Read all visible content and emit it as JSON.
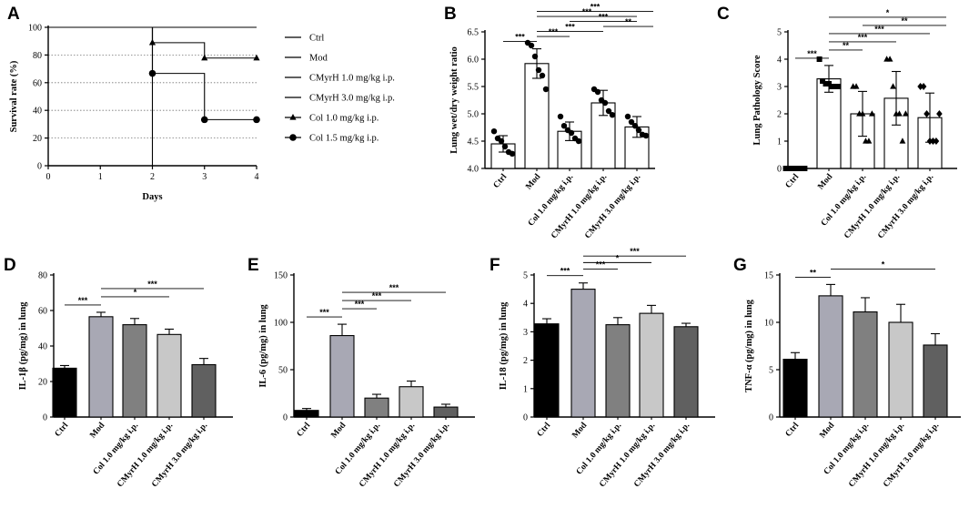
{
  "categories": [
    "Ctrl",
    "Mod",
    "Col 1.0 mg/kg i.p.",
    "CMyrH 1.0 mg/kg i.p.",
    "CMyrH 3.0 mg/kg i.p."
  ],
  "chart_data": [
    {
      "id": "A",
      "type": "line",
      "title": "",
      "xlabel": "Days",
      "ylabel": "Survival rate (%)",
      "xlim": [
        0,
        4
      ],
      "ylim": [
        0,
        100
      ],
      "xticks": [
        "0",
        "1",
        "2",
        "3",
        "4"
      ],
      "yticks": [
        "0",
        "20",
        "40",
        "60",
        "80",
        "100"
      ],
      "grid": "horizontal dotted",
      "series": [
        {
          "name": "Ctrl",
          "marker": "none",
          "points": [
            [
              0,
              100
            ],
            [
              4,
              100
            ]
          ]
        },
        {
          "name": "Mod",
          "marker": "none",
          "points": [
            [
              0,
              100
            ],
            [
              2,
              100
            ],
            [
              2,
              0
            ]
          ]
        },
        {
          "name": "CMyrH 1.0 mg/kg i.p.",
          "marker": "none",
          "points": [
            [
              0,
              100
            ],
            [
              4,
              100
            ]
          ]
        },
        {
          "name": "CMyrH 3.0 mg/kg i.p.",
          "marker": "none",
          "points": [
            [
              0,
              100
            ],
            [
              4,
              100
            ]
          ]
        },
        {
          "name": "Col 1.0 mg/kg i.p.",
          "marker": "triangle",
          "points": [
            [
              2,
              88.9
            ],
            [
              3,
              77.8
            ],
            [
              4,
              77.8
            ]
          ]
        },
        {
          "name": "Col 1.5 mg/kg i.p.",
          "marker": "circle",
          "points": [
            [
              2,
              66.7
            ],
            [
              3,
              33.3
            ],
            [
              4,
              33.3
            ]
          ]
        }
      ]
    },
    {
      "id": "B",
      "type": "bar",
      "ylabel": "Lung wet/dry weight ratio",
      "ylim": [
        4.0,
        6.5
      ],
      "yticks": [
        "4.0",
        "4.5",
        "5.0",
        "5.5",
        "6.0",
        "6.5"
      ],
      "values": [
        4.45,
        5.92,
        4.68,
        5.2,
        4.76
      ],
      "errors": [
        0.15,
        0.27,
        0.17,
        0.23,
        0.19
      ],
      "point_marker": "circle",
      "points": [
        [
          4.68,
          4.55,
          4.5,
          4.4,
          4.3,
          4.27
        ],
        [
          6.3,
          6.25,
          6.05,
          5.8,
          5.7,
          5.45
        ],
        [
          4.95,
          4.78,
          4.7,
          4.65,
          4.55,
          4.5
        ],
        [
          5.45,
          5.4,
          5.25,
          5.2,
          5.05,
          4.98
        ],
        [
          4.95,
          4.85,
          4.78,
          4.7,
          4.62,
          4.6
        ]
      ],
      "significance": [
        {
          "from": 0,
          "to": 1,
          "label": "***"
        },
        {
          "from": 1,
          "to": 2,
          "label": "***"
        },
        {
          "from": 1,
          "to": 3,
          "label": "***"
        },
        {
          "from": 1,
          "to": 4,
          "label": "***"
        },
        {
          "from": 1,
          "to": 5,
          "label": "***"
        },
        {
          "from": 3,
          "to": 5,
          "label": "**"
        },
        {
          "from": 2,
          "to": 4,
          "label": "***"
        }
      ]
    },
    {
      "id": "C",
      "type": "bar",
      "ylabel": "Lung Pathology Score",
      "ylim": [
        0,
        5
      ],
      "yticks": [
        "0",
        "1",
        "2",
        "3",
        "4",
        "5"
      ],
      "values": [
        0.0,
        3.28,
        2.0,
        2.57,
        1.86
      ],
      "errors": [
        0.0,
        0.49,
        0.82,
        0.98,
        0.9
      ],
      "point_marker": "various",
      "points": [
        [
          0,
          0,
          0,
          0,
          0,
          0,
          0
        ],
        [
          4,
          3.2,
          3.1,
          3.1,
          3,
          3,
          3
        ],
        [
          3,
          3,
          2,
          2,
          1,
          1,
          2
        ],
        [
          4,
          4,
          3,
          2,
          2,
          1,
          2
        ],
        [
          3,
          3,
          2,
          1,
          1,
          1,
          2
        ]
      ],
      "significance": [
        {
          "from": 0,
          "to": 1,
          "label": "***"
        },
        {
          "from": 1,
          "to": 2,
          "label": "**"
        },
        {
          "from": 1,
          "to": 3,
          "label": "***"
        },
        {
          "from": 1,
          "to": 4,
          "label": "***"
        },
        {
          "from": 1,
          "to": 5,
          "label": "*"
        },
        {
          "from": 2,
          "to": 5,
          "label": "**"
        }
      ]
    },
    {
      "id": "D",
      "type": "bar",
      "ylabel": "IL-1β (pg/mg) in lung",
      "ylim": [
        0,
        80
      ],
      "yticks": [
        "0",
        "20",
        "40",
        "60",
        "80"
      ],
      "values": [
        27.5,
        56.5,
        52.0,
        46.5,
        29.5
      ],
      "errors": [
        1.5,
        2.5,
        3.5,
        3.0,
        3.5
      ],
      "colors": [
        "#000000",
        "#a8a8b4",
        "#808080",
        "#c8c8c8",
        "#606060"
      ],
      "significance": [
        {
          "from": 0,
          "to": 1,
          "label": "***"
        },
        {
          "from": 1,
          "to": 3,
          "label": "*"
        },
        {
          "from": 1,
          "to": 4,
          "label": "***"
        }
      ]
    },
    {
      "id": "E",
      "type": "bar",
      "ylabel": "IL-6 (pg/mg) in lung",
      "ylim": [
        0,
        150
      ],
      "yticks": [
        "0",
        "50",
        "100",
        "150"
      ],
      "values": [
        7.0,
        86.0,
        20.0,
        32.0,
        10.5
      ],
      "errors": [
        2.0,
        12.0,
        4.0,
        6.0,
        3.0
      ],
      "colors": [
        "#000000",
        "#a8a8b4",
        "#808080",
        "#c8c8c8",
        "#606060"
      ],
      "significance": [
        {
          "from": 0,
          "to": 1,
          "label": "***"
        },
        {
          "from": 1,
          "to": 2,
          "label": "***"
        },
        {
          "from": 1,
          "to": 3,
          "label": "***"
        },
        {
          "from": 1,
          "to": 4,
          "label": "***"
        }
      ]
    },
    {
      "id": "F",
      "type": "bar",
      "ylabel": "IL-18 (pg/mg) in lung",
      "ylim": [
        0,
        5
      ],
      "yticks": [
        "0",
        "1",
        "2",
        "3",
        "4",
        "5"
      ],
      "values": [
        3.28,
        4.5,
        3.25,
        3.65,
        3.18
      ],
      "errors": [
        0.18,
        0.22,
        0.25,
        0.28,
        0.12
      ],
      "colors": [
        "#000000",
        "#a8a8b4",
        "#808080",
        "#c8c8c8",
        "#606060"
      ],
      "significance": [
        {
          "from": 0,
          "to": 1,
          "label": "***"
        },
        {
          "from": 1,
          "to": 2,
          "label": "***"
        },
        {
          "from": 1,
          "to": 3,
          "label": "*"
        },
        {
          "from": 1,
          "to": 4,
          "label": "***"
        }
      ]
    },
    {
      "id": "G",
      "type": "bar",
      "ylabel": "TNF-α (pg/mg) in lung",
      "ylim": [
        0,
        15
      ],
      "yticks": [
        "0",
        "5",
        "10",
        "15"
      ],
      "values": [
        6.1,
        12.8,
        11.1,
        10.0,
        7.6
      ],
      "errors": [
        0.7,
        1.2,
        1.5,
        1.9,
        1.2
      ],
      "colors": [
        "#000000",
        "#a8a8b4",
        "#808080",
        "#c8c8c8",
        "#606060"
      ],
      "significance": [
        {
          "from": 0,
          "to": 1,
          "label": "**"
        },
        {
          "from": 1,
          "to": 4,
          "label": "*"
        }
      ]
    }
  ]
}
